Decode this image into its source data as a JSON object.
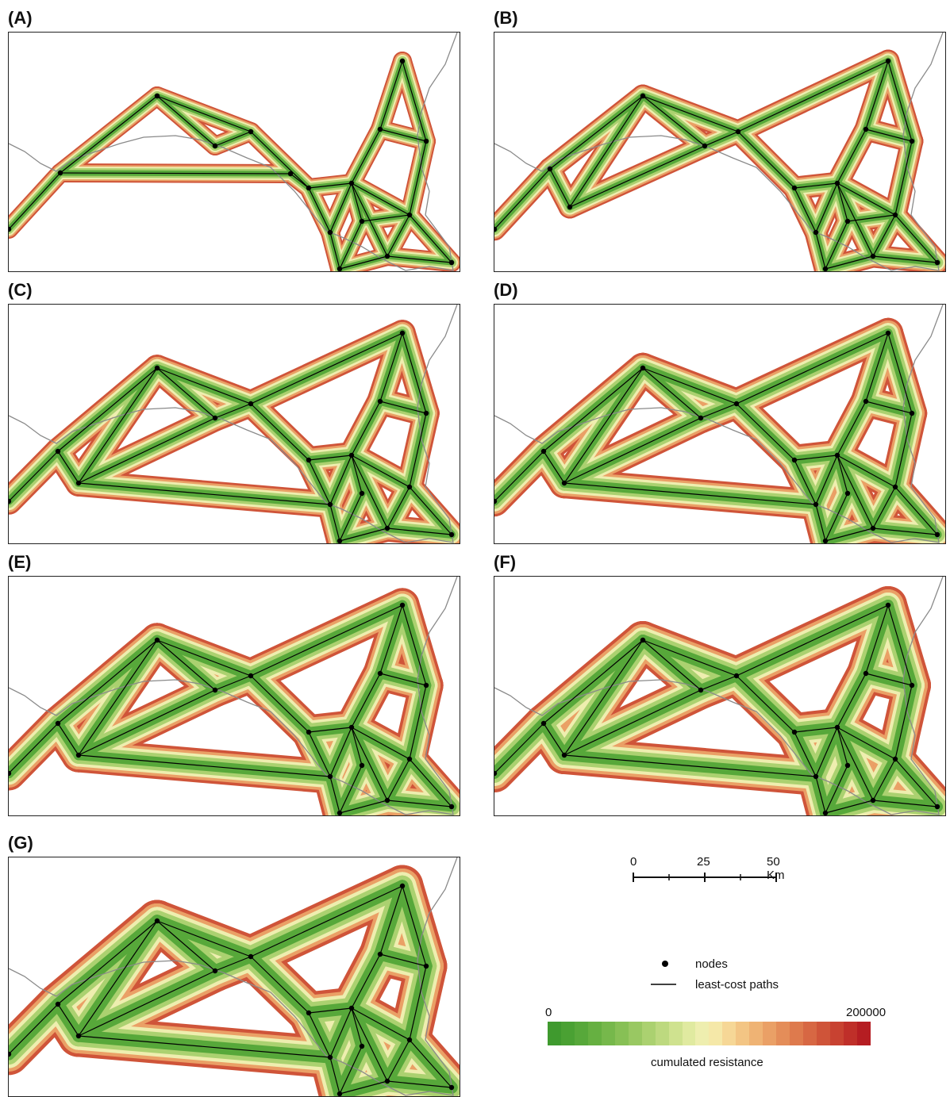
{
  "panels": [
    {
      "label": "(A)",
      "corridor_width": 10,
      "variant": "A"
    },
    {
      "label": "(B)",
      "corridor_width": 12,
      "variant": "B"
    },
    {
      "label": "(C)",
      "corridor_width": 14,
      "variant": "C"
    },
    {
      "label": "(D)",
      "corridor_width": 16,
      "variant": "D"
    },
    {
      "label": "(E)",
      "corridor_width": 18,
      "variant": "E"
    },
    {
      "label": "(F)",
      "corridor_width": 20,
      "variant": "F"
    },
    {
      "label": "(G)",
      "corridor_width": 22,
      "variant": "G"
    }
  ],
  "scale": {
    "ticks": [
      "0",
      "25",
      "50 Km"
    ]
  },
  "legend": {
    "nodes_label": "nodes",
    "paths_label": "least-cost paths",
    "min_label": "0",
    "max_label": "200000",
    "title": "cumulated resistance"
  },
  "colors": {
    "ramp": [
      "#3f9a2e",
      "#4aa133",
      "#57a83a",
      "#66b041",
      "#76b84b",
      "#87c055",
      "#99c862",
      "#abd170",
      "#bdd97f",
      "#cfe28f",
      "#e0eaa0",
      "#eeeeaf",
      "#f5e8a8",
      "#f6d796",
      "#f3c584",
      "#efb374",
      "#eaa066",
      "#e48d59",
      "#de7a4d",
      "#d76743",
      "#cf5439",
      "#c84231",
      "#bf2f29",
      "#b51d22"
    ],
    "path": "#000000",
    "border": "#8a8a8a"
  }
}
